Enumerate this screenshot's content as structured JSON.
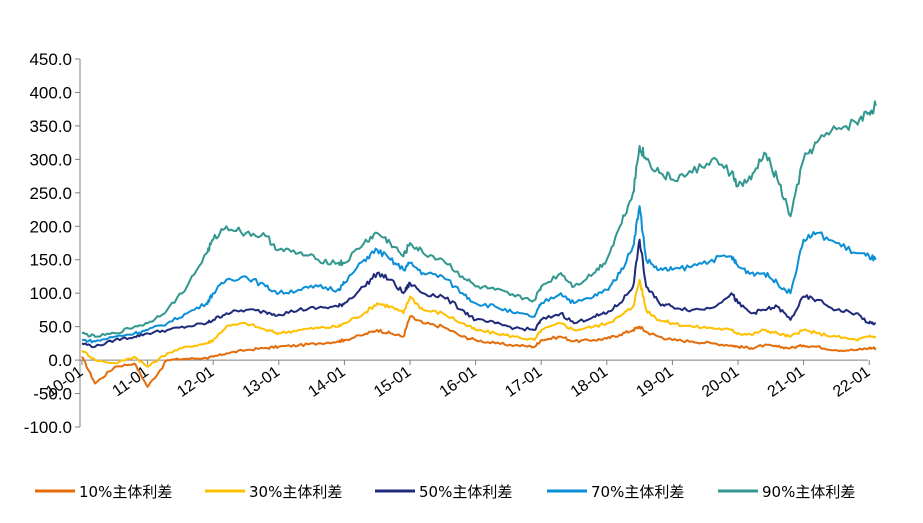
{
  "chart_data": {
    "type": "line",
    "title": "",
    "xlabel": "",
    "ylabel": "",
    "ylim": [
      -100,
      450
    ],
    "yticks": [
      "450.0",
      "400.0",
      "350.0",
      "300.0",
      "250.0",
      "200.0",
      "150.0",
      "100.0",
      "50.0",
      "0.0",
      "-50.0",
      "-100.0"
    ],
    "yticks_values": [
      450,
      400,
      350,
      300,
      250,
      200,
      150,
      100,
      50,
      0,
      -50,
      -100
    ],
    "xlim": [
      2010.0,
      2022.1
    ],
    "xticks": [
      "10-01",
      "11-01",
      "12-01",
      "13-01",
      "14-01",
      "15-01",
      "16-01",
      "17-01",
      "18-01",
      "19-01",
      "20-01",
      "21-01",
      "22-01"
    ],
    "xticks_values": [
      2010,
      2011,
      2012,
      2013,
      2014,
      2015,
      2016,
      2017,
      2018,
      2019,
      2020,
      2021,
      2022
    ],
    "grid": false,
    "legend_position": "bottom",
    "x": [
      2010.0,
      2010.2,
      2010.5,
      2010.8,
      2011.0,
      2011.3,
      2011.6,
      2011.9,
      2012.0,
      2012.2,
      2012.5,
      2012.8,
      2013.0,
      2013.3,
      2013.6,
      2013.9,
      2014.0,
      2014.3,
      2014.5,
      2014.7,
      2014.9,
      2015.0,
      2015.2,
      2015.5,
      2015.8,
      2016.0,
      2016.3,
      2016.6,
      2016.9,
      2017.0,
      2017.3,
      2017.5,
      2017.8,
      2018.0,
      2018.2,
      2018.4,
      2018.5,
      2018.6,
      2018.8,
      2019.0,
      2019.3,
      2019.6,
      2019.9,
      2020.0,
      2020.2,
      2020.4,
      2020.6,
      2020.8,
      2021.0,
      2021.2,
      2021.5,
      2021.8,
      2022.0,
      2022.1
    ],
    "series": [
      {
        "name": "10%主体利差",
        "color": "#e46c0a",
        "values": [
          5,
          -35,
          -10,
          -5,
          -40,
          0,
          2,
          3,
          5,
          10,
          15,
          18,
          20,
          22,
          25,
          28,
          30,
          38,
          45,
          40,
          35,
          65,
          55,
          50,
          35,
          30,
          25,
          22,
          20,
          30,
          35,
          28,
          30,
          32,
          38,
          45,
          50,
          42,
          35,
          30,
          28,
          25,
          22,
          20,
          18,
          22,
          20,
          18,
          22,
          20,
          15,
          15,
          18,
          18
        ]
      },
      {
        "name": "30%主体利差",
        "color": "#ffc000",
        "values": [
          15,
          0,
          -5,
          5,
          -10,
          10,
          20,
          25,
          30,
          50,
          55,
          45,
          40,
          45,
          48,
          50,
          55,
          70,
          85,
          80,
          70,
          95,
          75,
          70,
          55,
          45,
          40,
          35,
          30,
          45,
          55,
          45,
          50,
          55,
          65,
          80,
          120,
          75,
          60,
          55,
          50,
          48,
          45,
          40,
          38,
          45,
          40,
          35,
          45,
          40,
          35,
          30,
          35,
          35
        ]
      },
      {
        "name": "50%主体利差",
        "color": "#1f2b7a",
        "values": [
          25,
          20,
          30,
          35,
          40,
          45,
          50,
          55,
          60,
          70,
          75,
          72,
          68,
          75,
          78,
          80,
          85,
          110,
          130,
          120,
          100,
          115,
          100,
          95,
          75,
          60,
          55,
          48,
          45,
          60,
          70,
          55,
          65,
          70,
          85,
          110,
          180,
          110,
          85,
          80,
          75,
          78,
          100,
          85,
          70,
          75,
          80,
          60,
          95,
          90,
          75,
          70,
          55,
          55
        ]
      },
      {
        "name": "70%主体利差",
        "color": "#0b8fd6",
        "values": [
          30,
          28,
          35,
          40,
          45,
          55,
          70,
          85,
          100,
          120,
          125,
          110,
          100,
          105,
          110,
          105,
          115,
          150,
          165,
          150,
          135,
          145,
          130,
          125,
          100,
          85,
          80,
          70,
          65,
          85,
          100,
          85,
          95,
          105,
          130,
          170,
          230,
          150,
          135,
          135,
          140,
          150,
          155,
          140,
          130,
          130,
          115,
          100,
          180,
          190,
          175,
          160,
          155,
          150
        ]
      },
      {
        "name": "90%主体利差",
        "color": "#31978f",
        "values": [
          40,
          35,
          40,
          50,
          55,
          75,
          110,
          160,
          180,
          200,
          190,
          185,
          165,
          160,
          150,
          145,
          145,
          175,
          190,
          175,
          155,
          175,
          160,
          150,
          125,
          110,
          105,
          95,
          90,
          110,
          130,
          110,
          130,
          150,
          200,
          250,
          320,
          300,
          280,
          270,
          280,
          300,
          280,
          260,
          270,
          310,
          270,
          215,
          300,
          325,
          345,
          355,
          370,
          380
        ]
      }
    ]
  }
}
